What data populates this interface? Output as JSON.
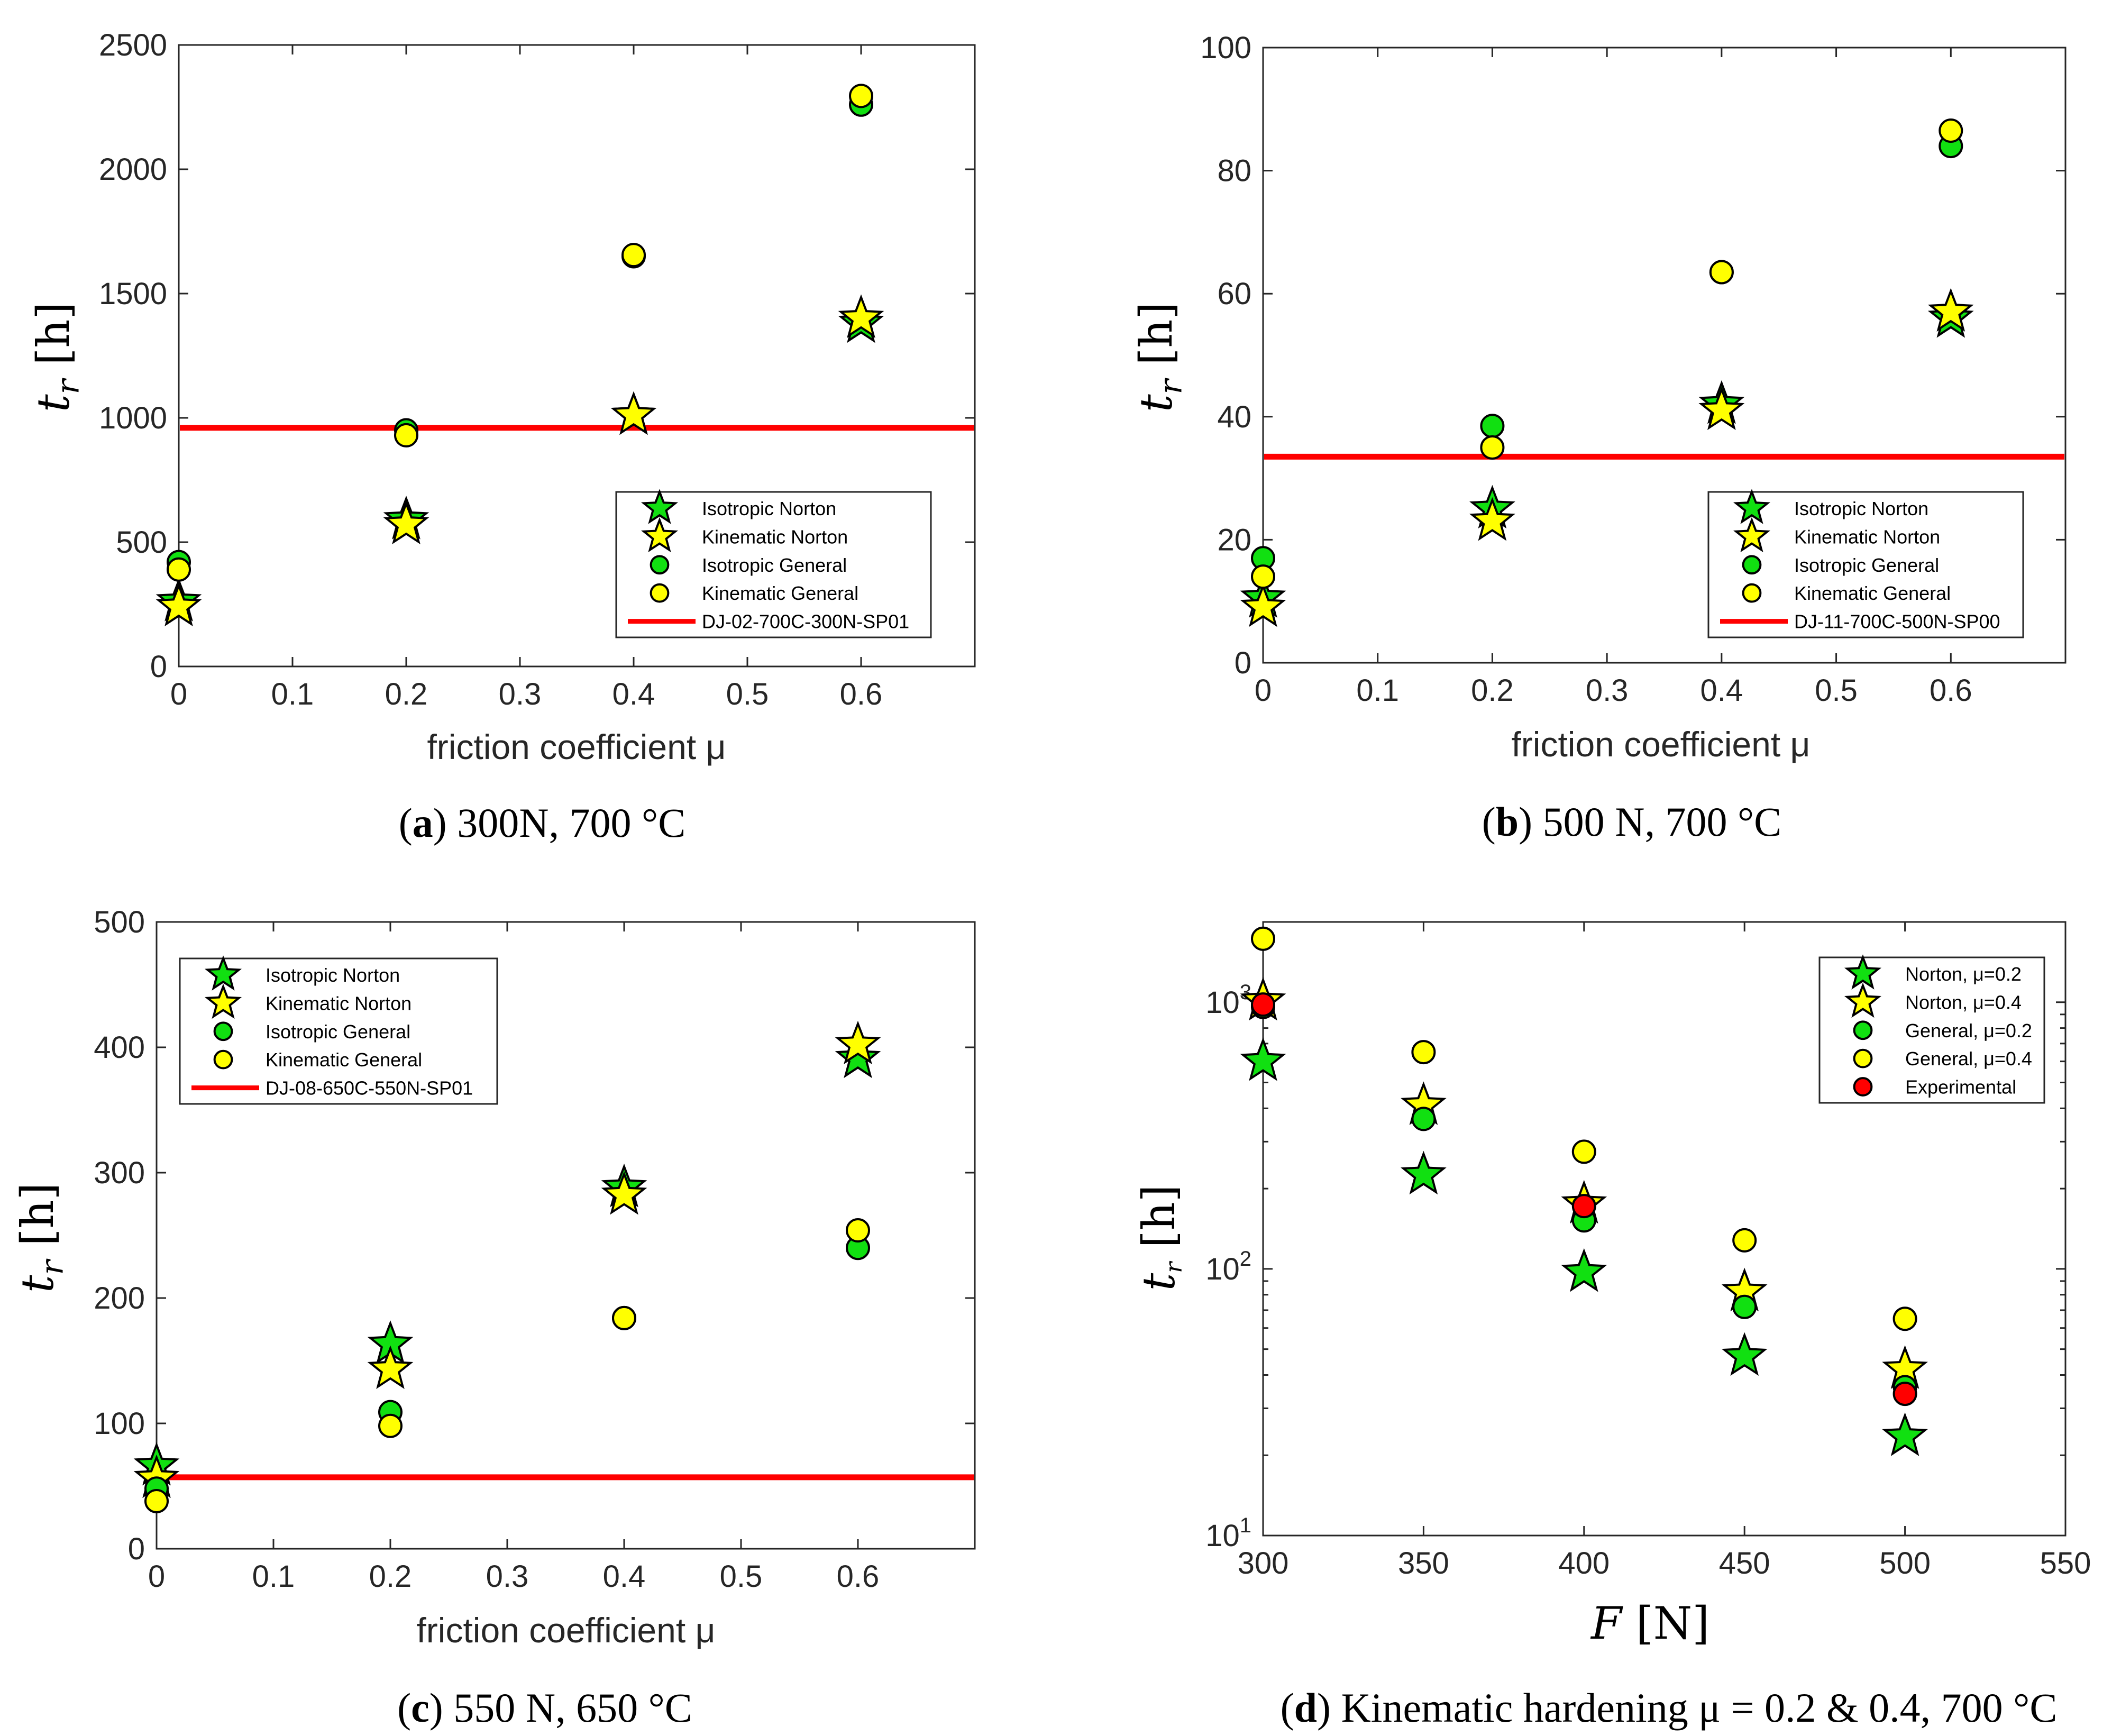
{
  "colors": {
    "green": "#11e011",
    "yellow": "#ffff00",
    "red": "#ff0000",
    "axis": "#262626"
  },
  "chart_data": [
    {
      "id": "a",
      "type": "scatter",
      "caption_letter": "a",
      "caption_text": "300N, 700 °C",
      "xlabel": "friction coefficient μ",
      "ylabel": "t_r [h]",
      "ylabel_main": "t",
      "ylabel_sub": "r",
      "ylabel_unit": "[h]",
      "xlim": [
        0,
        0.7
      ],
      "ylim": [
        0,
        2500
      ],
      "yscale": "linear",
      "xticks": [
        0,
        0.1,
        0.2,
        0.3,
        0.4,
        0.5,
        0.6
      ],
      "xtick_labels": [
        "0",
        "0.1",
        "0.2",
        "0.3",
        "0.4",
        "0.5",
        "0.6"
      ],
      "yticks": [
        0,
        500,
        1000,
        1500,
        2000,
        2500
      ],
      "ytick_labels": [
        "0",
        "500",
        "1000",
        "1500",
        "2000",
        "2500"
      ],
      "legend_position": "lower-right",
      "series": [
        {
          "name": "Isotropic Norton",
          "marker": "star",
          "color": "green",
          "x": [
            0,
            0.2,
            0.4,
            0.6
          ],
          "y": [
            260,
            590,
            1010,
            1380
          ]
        },
        {
          "name": "Kinematic Norton",
          "marker": "star",
          "color": "yellow",
          "x": [
            0,
            0.2,
            0.4,
            0.6
          ],
          "y": [
            240,
            570,
            1010,
            1400
          ]
        },
        {
          "name": "Isotropic General",
          "marker": "circle",
          "color": "green",
          "x": [
            0,
            0.2,
            0.4,
            0.6
          ],
          "y": [
            420,
            950,
            1650,
            2260
          ]
        },
        {
          "name": "Kinematic General",
          "marker": "circle",
          "color": "yellow",
          "x": [
            0,
            0.2,
            0.4,
            0.6
          ],
          "y": [
            390,
            930,
            1655,
            2295
          ]
        }
      ],
      "hline": {
        "name": "DJ-02-700C-300N-SP01",
        "y": 960,
        "color": "red"
      }
    },
    {
      "id": "b",
      "type": "scatter",
      "caption_letter": "b",
      "caption_text": "500 N, 700 °C",
      "xlabel": "friction coefficient μ",
      "ylabel": "t_r [h]",
      "ylabel_main": "t",
      "ylabel_sub": "r",
      "ylabel_unit": "[h]",
      "xlim": [
        0,
        0.7
      ],
      "ylim": [
        0,
        100
      ],
      "yscale": "linear",
      "xticks": [
        0,
        0.1,
        0.2,
        0.3,
        0.4,
        0.5,
        0.6
      ],
      "xtick_labels": [
        "0",
        "0.1",
        "0.2",
        "0.3",
        "0.4",
        "0.5",
        "0.6"
      ],
      "yticks": [
        0,
        20,
        40,
        60,
        80,
        100
      ],
      "ytick_labels": [
        "0",
        "20",
        "40",
        "60",
        "80",
        "100"
      ],
      "legend_position": "lower-right",
      "series": [
        {
          "name": "Isotropic Norton",
          "marker": "star",
          "color": "green",
          "x": [
            0,
            0.2,
            0.4,
            0.6
          ],
          "y": [
            10.5,
            25,
            42,
            56
          ]
        },
        {
          "name": "Kinematic Norton",
          "marker": "star",
          "color": "yellow",
          "x": [
            0,
            0.2,
            0.4,
            0.6
          ],
          "y": [
            9,
            23,
            41,
            57
          ]
        },
        {
          "name": "Isotropic General",
          "marker": "circle",
          "color": "green",
          "x": [
            0,
            0.2,
            0.4,
            0.6
          ],
          "y": [
            17,
            38.5,
            63.5,
            84
          ]
        },
        {
          "name": "Kinematic General",
          "marker": "circle",
          "color": "yellow",
          "x": [
            0,
            0.2,
            0.4,
            0.6
          ],
          "y": [
            14,
            35,
            63.5,
            86.5
          ]
        }
      ],
      "hline": {
        "name": "DJ-11-700C-500N-SP00",
        "y": 33.5,
        "color": "red"
      }
    },
    {
      "id": "c",
      "type": "scatter",
      "caption_letter": "c",
      "caption_text": "550 N, 650 °C",
      "xlabel": "friction coefficient μ",
      "ylabel": "t_r [h]",
      "ylabel_main": "t",
      "ylabel_sub": "r",
      "ylabel_unit": "[h]",
      "xlim": [
        0,
        0.7
      ],
      "ylim": [
        0,
        500
      ],
      "yscale": "linear",
      "xticks": [
        0,
        0.1,
        0.2,
        0.3,
        0.4,
        0.5,
        0.6
      ],
      "xtick_labels": [
        "0",
        "0.1",
        "0.2",
        "0.3",
        "0.4",
        "0.5",
        "0.6"
      ],
      "yticks": [
        0,
        100,
        200,
        300,
        400,
        500
      ],
      "ytick_labels": [
        "0",
        "100",
        "200",
        "300",
        "400",
        "500"
      ],
      "legend_position": "top-left",
      "series": [
        {
          "name": "Isotropic Norton",
          "marker": "star",
          "color": "green",
          "x": [
            0,
            0.2,
            0.4,
            0.6
          ],
          "y": [
            66,
            163,
            288,
            391
          ]
        },
        {
          "name": "Kinematic Norton",
          "marker": "star",
          "color": "yellow",
          "x": [
            0,
            0.2,
            0.4,
            0.6
          ],
          "y": [
            56,
            143,
            282,
            402
          ]
        },
        {
          "name": "Isotropic General",
          "marker": "circle",
          "color": "green",
          "x": [
            0,
            0.2,
            0.4,
            0.6
          ],
          "y": [
            48,
            109,
            184,
            240
          ]
        },
        {
          "name": "Kinematic General",
          "marker": "circle",
          "color": "yellow",
          "x": [
            0,
            0.2,
            0.4,
            0.6
          ],
          "y": [
            38,
            98,
            184,
            254
          ]
        }
      ],
      "hline": {
        "name": "DJ-08-650C-550N-SP01",
        "y": 57,
        "color": "red"
      }
    },
    {
      "id": "d",
      "type": "scatter",
      "caption_letter": "d",
      "caption_text": "Kinematic hardening μ = 0.2 & 0.4, 700 °C",
      "xlabel": "F [N]",
      "ylabel": "t_r [h]",
      "ylabel_main": "t",
      "ylabel_sub": "r",
      "ylabel_unit": "[h]",
      "xlim": [
        300,
        550
      ],
      "ylim": [
        10,
        2000
      ],
      "yscale": "log",
      "xticks": [
        300,
        350,
        400,
        450,
        500,
        550
      ],
      "xtick_labels": [
        "300",
        "350",
        "400",
        "450",
        "500",
        "550"
      ],
      "yticks": [
        10,
        100,
        1000
      ],
      "ytick_labels": [
        "10",
        "10",
        "10"
      ],
      "ytick_exponents": [
        "1",
        "2",
        "3"
      ],
      "legend_position": "top-right",
      "series": [
        {
          "name": "Norton, μ=0.2",
          "marker": "star",
          "color": "green",
          "x": [
            300,
            350,
            400,
            450,
            500
          ],
          "y": [
            600,
            225,
            97,
            47,
            23.5
          ]
        },
        {
          "name": "Norton, μ=0.4",
          "marker": "star",
          "color": "yellow",
          "x": [
            300,
            350,
            400,
            450,
            500
          ],
          "y": [
            1010,
            410,
            175,
            82,
            42
          ]
        },
        {
          "name": "General, μ=0.2",
          "marker": "circle",
          "color": "green",
          "x": [
            300,
            350,
            400,
            450,
            500
          ],
          "y": [
            960,
            365,
            152,
            72,
            36
          ]
        },
        {
          "name": " General, μ=0.4",
          "marker": "circle",
          "color": "yellow",
          "x": [
            300,
            350,
            400,
            450,
            500
          ],
          "y": [
            1730,
            650,
            275,
            128,
            65
          ]
        },
        {
          "name": "Experimental",
          "marker": "circle",
          "color": "red",
          "x": [
            300,
            400,
            500
          ],
          "y": [
            980,
            172,
            34
          ]
        }
      ]
    }
  ]
}
